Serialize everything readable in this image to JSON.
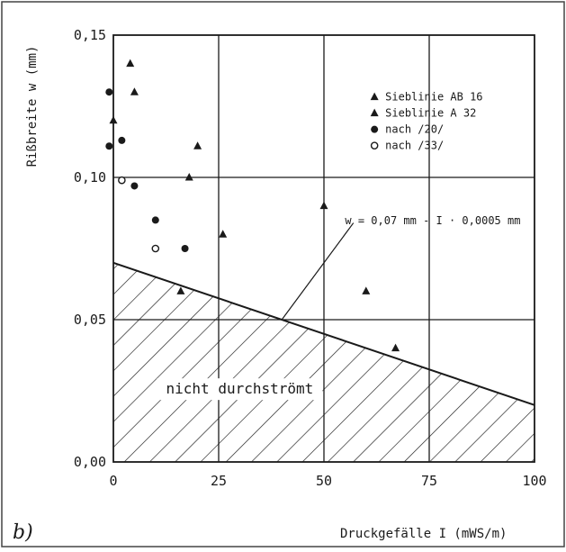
{
  "panel_label": "b)",
  "chart_data": {
    "type": "scatter",
    "title": "",
    "xlabel": "Druckgefälle I  (mWS/m)",
    "ylabel": "Rißbreite w  (mm)",
    "xlim": [
      0,
      100
    ],
    "ylim": [
      0,
      0.15
    ],
    "x_ticks": [
      "0",
      "25",
      "50",
      "75",
      "100"
    ],
    "y_ticks": [
      "0,00",
      "0,05",
      "0,10",
      "0,15"
    ],
    "grid": true,
    "legend_position": "top-right",
    "series": [
      {
        "name": "Sieblinie AB 16",
        "marker": "triangle",
        "points": [
          [
            0,
            0.12
          ],
          [
            4,
            0.14
          ],
          [
            5,
            0.13
          ],
          [
            18,
            0.1
          ],
          [
            20,
            0.111
          ],
          [
            26,
            0.08
          ],
          [
            16,
            0.06
          ],
          [
            50,
            0.09
          ],
          [
            60,
            0.06
          ],
          [
            67,
            0.04
          ]
        ]
      },
      {
        "name": "Sieblinie A  32",
        "marker": "triangle",
        "points": []
      },
      {
        "name": "nach /20/",
        "marker": "filled-circle",
        "points": [
          [
            -1,
            0.13
          ],
          [
            -1,
            0.111
          ],
          [
            2,
            0.113
          ],
          [
            5,
            0.097
          ],
          [
            10,
            0.085
          ],
          [
            17,
            0.075
          ]
        ]
      },
      {
        "name": "nach /33/",
        "marker": "open-circle",
        "points": [
          [
            2,
            0.099
          ],
          [
            10,
            0.075
          ]
        ]
      }
    ],
    "boundary_line": {
      "label": "w = 0,07 mm - I · 0,0005 mm",
      "intercept": 0.07,
      "slope": -0.0005
    },
    "region_label": "nicht durchströmt"
  }
}
